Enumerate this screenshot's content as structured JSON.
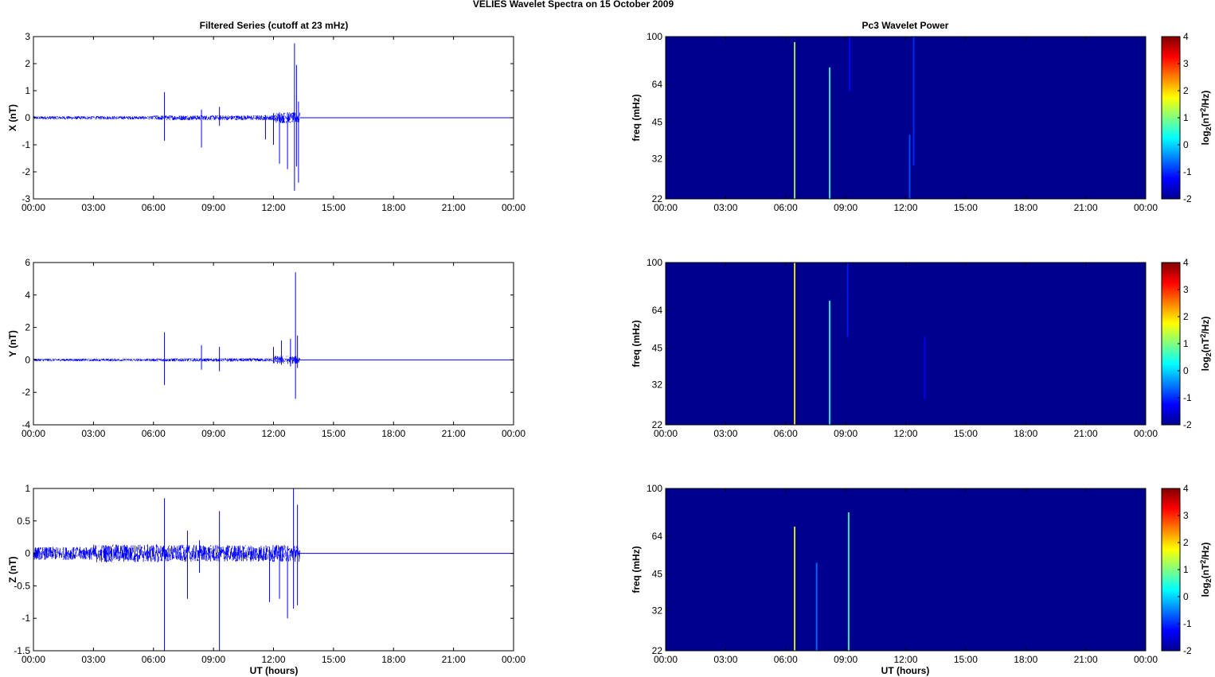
{
  "figure": {
    "title": "VELIES Wavelet Spectra on 15 October   2009",
    "left_column_title": "Filtered Series (cutoff at 23 mHz)",
    "right_column_title": "Pc3 Wavelet Power",
    "xlabel": "UT (hours)"
  },
  "x_ticks": [
    "00:00",
    "03:00",
    "06:00",
    "09:00",
    "12:00",
    "15:00",
    "18:00",
    "21:00",
    "00:00"
  ],
  "colors": {
    "series": "#0000ff",
    "background_power": "#00008f"
  },
  "chart_data": [
    {
      "id": "series-x",
      "type": "line",
      "ylabel": "X (nT)",
      "xlim": [
        0,
        24
      ],
      "ylim": [
        -3,
        3
      ],
      "yticks": [
        "3",
        "2",
        "1",
        "0",
        "-1",
        "-2",
        "-3"
      ],
      "noise_band": [
        {
          "x": [
            0,
            6
          ],
          "amp": 0.06
        },
        {
          "x": [
            6,
            12
          ],
          "amp": 0.09
        },
        {
          "x": [
            12,
            13.3
          ],
          "amp": 0.2
        }
      ],
      "flat_after": 13.3,
      "spikes": [
        {
          "x": 6.55,
          "top": 0.95,
          "bottom": -0.85
        },
        {
          "x": 8.4,
          "top": 0.3,
          "bottom": -1.1
        },
        {
          "x": 9.3,
          "top": 0.4,
          "bottom": -0.3
        },
        {
          "x": 11.6,
          "top": 0.1,
          "bottom": -0.8
        },
        {
          "x": 12.0,
          "top": 0.15,
          "bottom": -1.0
        },
        {
          "x": 12.3,
          "top": 0.2,
          "bottom": -1.7
        },
        {
          "x": 12.7,
          "top": 0.2,
          "bottom": -1.9
        },
        {
          "x": 13.05,
          "top": 2.75,
          "bottom": -2.7
        },
        {
          "x": 13.15,
          "top": 1.95,
          "bottom": -1.8
        },
        {
          "x": 13.25,
          "top": 0.6,
          "bottom": -2.4
        }
      ]
    },
    {
      "id": "series-y",
      "type": "line",
      "ylabel": "Y (nT)",
      "xlim": [
        0,
        24
      ],
      "ylim": [
        -4,
        6
      ],
      "yticks": [
        "6",
        "4",
        "2",
        "0",
        "-2",
        "-4"
      ],
      "noise_band": [
        {
          "x": [
            0,
            6
          ],
          "amp": 0.08
        },
        {
          "x": [
            6,
            12
          ],
          "amp": 0.1
        },
        {
          "x": [
            12,
            13.3
          ],
          "amp": 0.25
        }
      ],
      "flat_after": 13.3,
      "spikes": [
        {
          "x": 6.55,
          "top": 1.7,
          "bottom": -1.55
        },
        {
          "x": 8.4,
          "top": 0.9,
          "bottom": -0.6
        },
        {
          "x": 9.3,
          "top": 0.8,
          "bottom": -0.7
        },
        {
          "x": 12.0,
          "top": 0.8,
          "bottom": -0.2
        },
        {
          "x": 12.4,
          "top": 1.2,
          "bottom": -0.3
        },
        {
          "x": 12.85,
          "top": 1.3,
          "bottom": -0.4
        },
        {
          "x": 13.1,
          "top": 5.4,
          "bottom": -2.4
        },
        {
          "x": 13.2,
          "top": 1.5,
          "bottom": -0.5
        }
      ]
    },
    {
      "id": "series-z",
      "type": "line",
      "ylabel": "Z (nT)",
      "xlim": [
        0,
        24
      ],
      "ylim": [
        -1.5,
        1
      ],
      "yticks": [
        "1",
        "0.5",
        "0",
        "-0.5",
        "-1",
        "-1.5"
      ],
      "noise_band": [
        {
          "x": [
            0,
            3
          ],
          "amp": 0.1
        },
        {
          "x": [
            3,
            6.5
          ],
          "amp": 0.14
        },
        {
          "x": [
            6.5,
            13.3
          ],
          "amp": 0.13
        }
      ],
      "flat_after": 13.3,
      "spikes": [
        {
          "x": 6.55,
          "top": 0.85,
          "bottom": -1.5
        },
        {
          "x": 7.7,
          "top": 0.35,
          "bottom": -0.7
        },
        {
          "x": 8.3,
          "top": 0.2,
          "bottom": -0.3
        },
        {
          "x": 9.3,
          "top": 0.65,
          "bottom": -1.5
        },
        {
          "x": 11.8,
          "top": 0.1,
          "bottom": -0.75
        },
        {
          "x": 12.3,
          "top": 0.1,
          "bottom": -0.7
        },
        {
          "x": 12.7,
          "top": 0.1,
          "bottom": -1.0
        },
        {
          "x": 13.0,
          "top": 1.0,
          "bottom": -0.85
        },
        {
          "x": 13.2,
          "top": 0.75,
          "bottom": -0.8
        }
      ]
    },
    {
      "id": "power-x",
      "type": "heatmap",
      "ylabel": "freq (mHz)",
      "clabel": "log2(nT2/Hz)",
      "xlim": [
        0,
        24
      ],
      "ylim": [
        22,
        100
      ],
      "clim": [
        -2,
        4
      ],
      "yscale": "log",
      "yticks": [
        "100",
        "64",
        "45",
        "32",
        "22"
      ],
      "cticks": [
        "4",
        "3",
        "2",
        "1",
        "0",
        "-1",
        "-2"
      ],
      "streaks": [
        {
          "x": 6.45,
          "fmin": 22,
          "fmax": 95,
          "level": 1.2
        },
        {
          "x": 8.2,
          "fmin": 22,
          "fmax": 75,
          "level": 0.5
        },
        {
          "x": 9.2,
          "fmin": 60,
          "fmax": 100,
          "level": -1.2
        },
        {
          "x": 12.2,
          "fmin": 22,
          "fmax": 40,
          "level": -0.8
        },
        {
          "x": 12.4,
          "fmin": 30,
          "fmax": 100,
          "level": -1.0
        }
      ]
    },
    {
      "id": "power-y",
      "type": "heatmap",
      "ylabel": "freq (mHz)",
      "clabel": "log2(nT2/Hz)",
      "xlim": [
        0,
        24
      ],
      "ylim": [
        22,
        100
      ],
      "clim": [
        -2,
        4
      ],
      "yscale": "log",
      "yticks": [
        "100",
        "64",
        "45",
        "32",
        "22"
      ],
      "cticks": [
        "4",
        "3",
        "2",
        "1",
        "0",
        "-1",
        "-2"
      ],
      "streaks": [
        {
          "x": 6.45,
          "fmin": 22,
          "fmax": 100,
          "level": 1.8
        },
        {
          "x": 8.2,
          "fmin": 22,
          "fmax": 70,
          "level": 0.4
        },
        {
          "x": 9.1,
          "fmin": 50,
          "fmax": 100,
          "level": -1.1
        },
        {
          "x": 12.95,
          "fmin": 28,
          "fmax": 50,
          "level": -1.3
        }
      ]
    },
    {
      "id": "power-z",
      "type": "heatmap",
      "ylabel": "freq (mHz)",
      "clabel": "log2(nT2/Hz)",
      "xlim": [
        0,
        24
      ],
      "ylim": [
        22,
        100
      ],
      "clim": [
        -2,
        4
      ],
      "yscale": "log",
      "yticks": [
        "100",
        "64",
        "45",
        "32",
        "22"
      ],
      "cticks": [
        "4",
        "3",
        "2",
        "1",
        "0",
        "-1",
        "-2"
      ],
      "streaks": [
        {
          "x": 6.45,
          "fmin": 22,
          "fmax": 70,
          "level": 1.6
        },
        {
          "x": 7.55,
          "fmin": 22,
          "fmax": 50,
          "level": -0.6
        },
        {
          "x": 9.15,
          "fmin": 22,
          "fmax": 80,
          "level": 0.7
        }
      ]
    }
  ]
}
